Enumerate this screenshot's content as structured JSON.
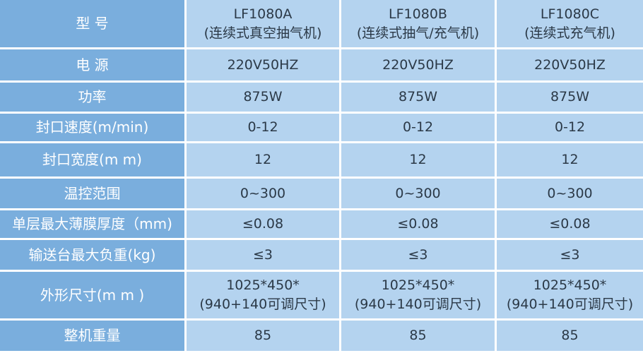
{
  "table": {
    "rows": [
      {
        "label": "型 号",
        "values": [
          [
            "LF1080A",
            "(连续式真空抽气机)"
          ],
          [
            "LF1080B",
            "(连续式抽气/充气机)"
          ],
          [
            "LF1080C",
            "(连续式充气机)"
          ]
        ]
      },
      {
        "label": "电 源",
        "values": [
          [
            "220V50HZ"
          ],
          [
            "220V50HZ"
          ],
          [
            "220V50HZ"
          ]
        ]
      },
      {
        "label": "功率",
        "values": [
          [
            "875W"
          ],
          [
            "875W"
          ],
          [
            "875W"
          ]
        ]
      },
      {
        "label": "封口速度(m/min)",
        "values": [
          [
            "0-12"
          ],
          [
            "0-12"
          ],
          [
            "0-12"
          ]
        ]
      },
      {
        "label": "封口宽度(m m)",
        "values": [
          [
            "12"
          ],
          [
            "12"
          ],
          [
            "12"
          ]
        ]
      },
      {
        "label": "温控范围",
        "values": [
          [
            "0~300"
          ],
          [
            "0~300"
          ],
          [
            "0~300"
          ]
        ]
      },
      {
        "label": "单层最大薄膜厚度（mm)",
        "values": [
          [
            "≤0.08"
          ],
          [
            "≤0.08"
          ],
          [
            "≤0.08"
          ]
        ]
      },
      {
        "label": "输送台最大负重(kg)",
        "values": [
          [
            "≤3"
          ],
          [
            "≤3"
          ],
          [
            "≤3"
          ]
        ]
      },
      {
        "label": "外形尺寸(m m )",
        "values": [
          [
            "1025*450*",
            "(940+140可调尺寸)"
          ],
          [
            "1025*450*",
            "(940+140可调尺寸)"
          ],
          [
            "1025*450*",
            "(940+140可调尺寸)"
          ]
        ]
      },
      {
        "label": "整机重量",
        "values": [
          [
            "85"
          ],
          [
            "85"
          ],
          [
            "85"
          ]
        ]
      }
    ]
  },
  "colors": {
    "header_bg": "#7aaedd",
    "cell_bg": "#b4d3ef",
    "text": "#2b3947",
    "border": "#ffffff"
  }
}
